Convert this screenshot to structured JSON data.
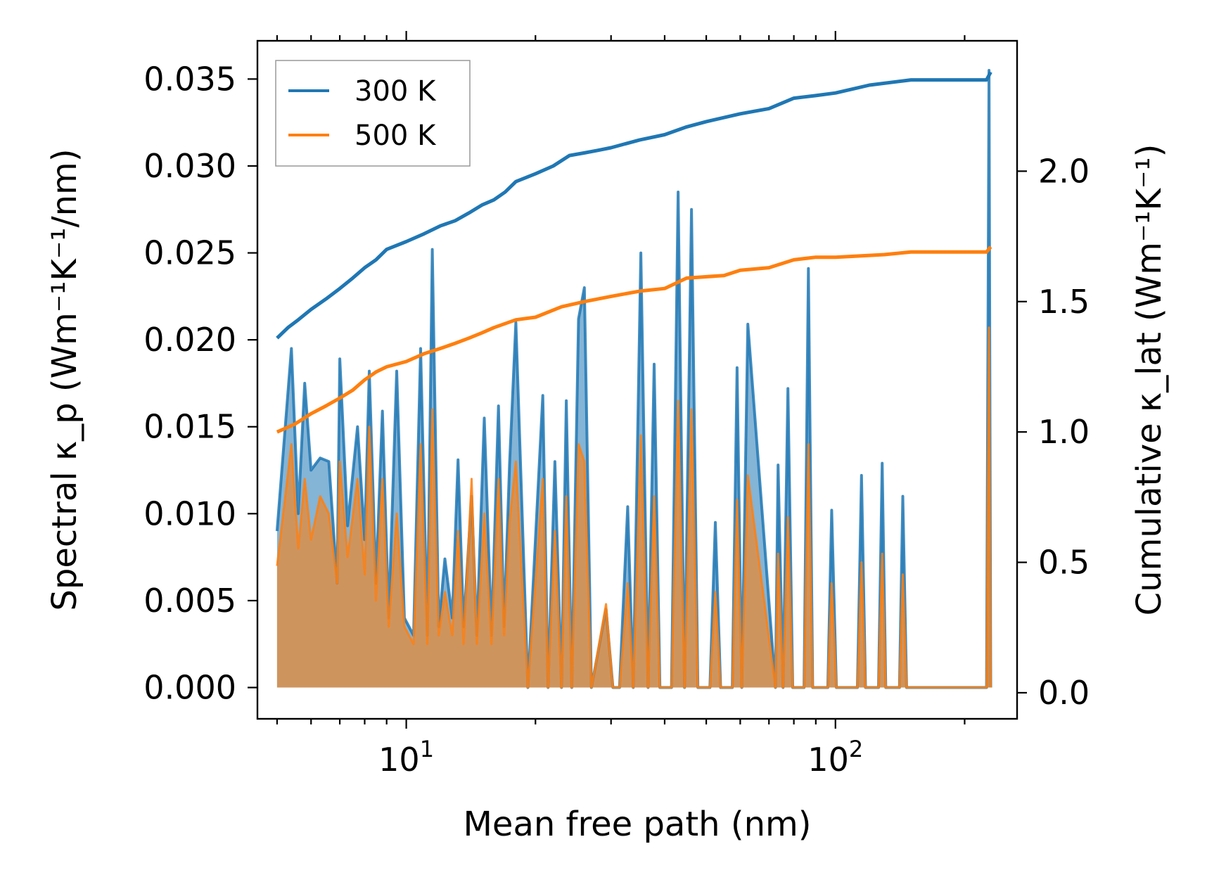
{
  "chart_data": {
    "type": "line",
    "x_scale": "log",
    "xlabel": "Mean free path (nm)",
    "ylabel_left": "Spectral κ_p (Wm⁻¹K⁻¹/nm)",
    "ylabel_right": "Cumulative κ_lat (Wm⁻¹K⁻¹)",
    "xlim": [
      4.5,
      265
    ],
    "ylim_left": [
      -0.0018,
      0.0372
    ],
    "ylim_right": [
      -0.1,
      2.5
    ],
    "x_ticks": [
      {
        "value": 10,
        "base": "10",
        "exp": "1"
      },
      {
        "value": 100,
        "base": "10",
        "exp": "2"
      }
    ],
    "y_left_ticks": [
      "0.000",
      "0.005",
      "0.010",
      "0.015",
      "0.020",
      "0.025",
      "0.030",
      "0.035"
    ],
    "y_right_ticks": [
      "0.0",
      "0.5",
      "1.0",
      "1.5",
      "2.0"
    ],
    "colors": {
      "300K": "#1f77b4",
      "500K": "#ff7f0e",
      "overlap_fill": "#c49a6c"
    },
    "legend": {
      "position": "top-left",
      "entries": [
        "300 K",
        "500 K"
      ]
    },
    "series": [
      {
        "name": "300 K",
        "axis": "right",
        "kind": "cumulative",
        "x": [
          5.0,
          5.3,
          5.6,
          6.0,
          6.5,
          7.0,
          7.5,
          8.0,
          8.5,
          9.0,
          10.0,
          11.0,
          12.0,
          13.0,
          14.0,
          15.0,
          16.0,
          17.0,
          18.0,
          20.0,
          22.0,
          24.0,
          26.0,
          28.0,
          30.0,
          35.0,
          40.0,
          45.0,
          50.0,
          60.0,
          70.0,
          80.0,
          90.0,
          100.0,
          120.0,
          150.0,
          200.0,
          225.0,
          230.0
        ],
        "values": [
          1.36,
          1.4,
          1.43,
          1.47,
          1.51,
          1.55,
          1.59,
          1.63,
          1.66,
          1.7,
          1.73,
          1.76,
          1.79,
          1.81,
          1.84,
          1.87,
          1.89,
          1.92,
          1.96,
          1.99,
          2.02,
          2.06,
          2.07,
          2.08,
          2.09,
          2.12,
          2.14,
          2.17,
          2.19,
          2.22,
          2.24,
          2.28,
          2.29,
          2.3,
          2.33,
          2.35,
          2.35,
          2.35,
          2.38
        ]
      },
      {
        "name": "500 K",
        "axis": "right",
        "kind": "cumulative",
        "x": [
          5.0,
          5.5,
          6.0,
          6.5,
          7.0,
          7.5,
          8.0,
          8.5,
          9.0,
          10.0,
          11.0,
          12.0,
          13.0,
          14.0,
          15.0,
          16.0,
          18.0,
          20.0,
          23.0,
          26.0,
          30.0,
          35.0,
          40.0,
          45.0,
          55.0,
          60.0,
          70.0,
          80.0,
          90.0,
          100.0,
          130.0,
          150.0,
          225.0,
          230.0
        ],
        "values": [
          1.0,
          1.03,
          1.07,
          1.1,
          1.13,
          1.16,
          1.2,
          1.23,
          1.25,
          1.27,
          1.3,
          1.32,
          1.34,
          1.36,
          1.38,
          1.4,
          1.43,
          1.44,
          1.48,
          1.5,
          1.52,
          1.54,
          1.55,
          1.59,
          1.6,
          1.62,
          1.63,
          1.66,
          1.67,
          1.67,
          1.68,
          1.69,
          1.69,
          1.71
        ]
      },
      {
        "name": "300 K",
        "axis": "left",
        "kind": "spectral",
        "x": [
          5.0,
          5.4,
          5.6,
          5.8,
          6.0,
          6.3,
          6.6,
          6.9,
          7.0,
          7.3,
          7.7,
          8.0,
          8.2,
          8.5,
          8.8,
          9.1,
          9.5,
          9.9,
          10.4,
          10.8,
          11.2,
          11.5,
          11.9,
          12.3,
          12.8,
          13.2,
          13.6,
          14.2,
          14.6,
          15.2,
          15.8,
          16.4,
          16.9,
          17.4,
          18.0,
          19.2,
          20.8,
          21.4,
          22.2,
          23.0,
          23.6,
          24.3,
          25.2,
          26.0,
          27.0,
          29.2,
          30.3,
          31.4,
          32.8,
          33.8,
          35.2,
          36.6,
          37.8,
          39.0,
          41.5,
          43.0,
          44.5,
          46.2,
          47.8,
          51.0,
          52.5,
          54.0,
          57.5,
          59.0,
          60.5,
          62.5,
          72.5,
          73.5,
          75.5,
          77.5,
          79.5,
          84.5,
          86.5,
          88.5,
          96.0,
          98.0,
          100.5,
          112.5,
          115.0,
          117.5,
          126.0,
          128.5,
          131.0,
          141.0,
          143.5,
          146.5,
          225.0,
          228.0,
          230.0
        ],
        "values": [
          0.009,
          0.0195,
          0.01,
          0.0175,
          0.0125,
          0.0132,
          0.013,
          0.006,
          0.0189,
          0.0093,
          0.015,
          0.0085,
          0.0182,
          0.006,
          0.0159,
          0.004,
          0.0182,
          0.004,
          0.003,
          0.0195,
          0.003,
          0.0252,
          0.0035,
          0.0074,
          0.004,
          0.0131,
          0.0035,
          0.011,
          0.003,
          0.0155,
          0.003,
          0.0162,
          0.0035,
          0.0128,
          0.021,
          0.0,
          0.0168,
          0.0,
          0.013,
          0.0,
          0.0165,
          0.0,
          0.0212,
          0.023,
          0.0,
          0.0045,
          0.0,
          0.0,
          0.0104,
          0.0,
          0.025,
          0.0,
          0.0186,
          0.0,
          0.0,
          0.0285,
          0.0,
          0.0275,
          0.0,
          0.0,
          0.0095,
          0.0,
          0.0,
          0.0184,
          0.0,
          0.0209,
          0.0,
          0.0128,
          0.0,
          0.0172,
          0.0,
          0.0,
          0.0241,
          0.0,
          0.0,
          0.0102,
          0.0,
          0.0,
          0.0122,
          0.0,
          0.0,
          0.0129,
          0.0,
          0.0,
          0.011,
          0.0,
          0.0,
          0.0355,
          0.0
        ]
      },
      {
        "name": "500 K",
        "axis": "left",
        "kind": "spectral",
        "x": [
          5.0,
          5.4,
          5.6,
          5.8,
          6.0,
          6.3,
          6.6,
          6.9,
          7.0,
          7.3,
          7.7,
          8.0,
          8.2,
          8.5,
          8.8,
          9.1,
          9.5,
          9.9,
          10.4,
          10.8,
          11.2,
          11.5,
          11.9,
          12.3,
          12.8,
          13.2,
          13.6,
          14.2,
          14.6,
          15.2,
          15.8,
          16.4,
          16.9,
          17.4,
          18.0,
          19.2,
          20.8,
          21.4,
          22.2,
          23.0,
          23.6,
          24.3,
          25.2,
          26.0,
          27.0,
          29.2,
          30.3,
          31.4,
          32.8,
          33.8,
          35.2,
          36.6,
          37.8,
          39.0,
          41.5,
          43.0,
          44.5,
          46.2,
          47.8,
          51.0,
          52.5,
          54.0,
          57.5,
          59.0,
          60.5,
          62.5,
          72.5,
          73.5,
          75.5,
          77.5,
          79.5,
          84.5,
          86.5,
          88.5,
          96.0,
          98.0,
          100.5,
          112.5,
          115.0,
          117.5,
          126.0,
          128.5,
          131.0,
          141.0,
          143.5,
          146.5,
          225.0,
          228.0,
          230.0
        ],
        "values": [
          0.007,
          0.014,
          0.008,
          0.012,
          0.0085,
          0.011,
          0.01,
          0.006,
          0.013,
          0.0075,
          0.012,
          0.0065,
          0.015,
          0.005,
          0.012,
          0.0035,
          0.01,
          0.0035,
          0.0025,
          0.014,
          0.0025,
          0.016,
          0.003,
          0.0055,
          0.003,
          0.009,
          0.0025,
          0.012,
          0.0025,
          0.01,
          0.0025,
          0.012,
          0.003,
          0.0095,
          0.013,
          0.0,
          0.012,
          0.0,
          0.009,
          0.0,
          0.011,
          0.0,
          0.014,
          0.013,
          0.0,
          0.0048,
          0.0,
          0.0,
          0.006,
          0.0,
          0.0145,
          0.0,
          0.011,
          0.0,
          0.0,
          0.0165,
          0.0,
          0.016,
          0.0,
          0.0,
          0.0055,
          0.0,
          0.0,
          0.0108,
          0.0,
          0.0122,
          0.0,
          0.0077,
          0.0,
          0.0098,
          0.0,
          0.0,
          0.014,
          0.0,
          0.0,
          0.006,
          0.0,
          0.0,
          0.0072,
          0.0,
          0.0,
          0.0077,
          0.0,
          0.0,
          0.0065,
          0.0,
          0.0,
          0.0207,
          0.0
        ]
      }
    ]
  }
}
